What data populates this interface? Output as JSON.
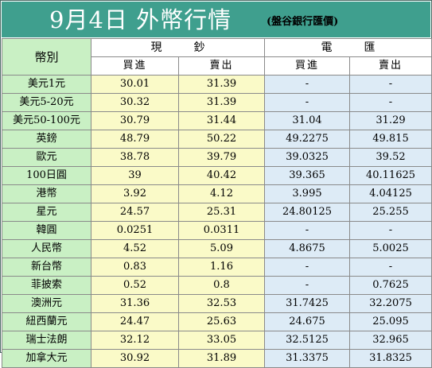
{
  "title": {
    "main": "9月4日 外幣行情",
    "source": "(盤谷銀行匯價)"
  },
  "header": {
    "currency_label": "幣別",
    "cash_label": "現鈔",
    "tt_label": "電匯",
    "buy_label": "買進",
    "sell_label": "賣出"
  },
  "rows": [
    {
      "name": "美元1元",
      "cash_buy": "30.01",
      "cash_sell": "31.39",
      "tt_buy": "-",
      "tt_sell": "-"
    },
    {
      "name": "美元5-20元",
      "cash_buy": "30.32",
      "cash_sell": "31.39",
      "tt_buy": "-",
      "tt_sell": "-"
    },
    {
      "name": "美元50-100元",
      "cash_buy": "30.79",
      "cash_sell": "31.44",
      "tt_buy": "31.04",
      "tt_sell": "31.29"
    },
    {
      "name": "英鎊",
      "cash_buy": "48.79",
      "cash_sell": "50.22",
      "tt_buy": "49.2275",
      "tt_sell": "49.815"
    },
    {
      "name": "歐元",
      "cash_buy": "38.78",
      "cash_sell": "39.79",
      "tt_buy": "39.0325",
      "tt_sell": "39.52"
    },
    {
      "name": "100日圓",
      "cash_buy": "39",
      "cash_sell": "40.42",
      "tt_buy": "39.365",
      "tt_sell": "40.11625"
    },
    {
      "name": "港幣",
      "cash_buy": "3.92",
      "cash_sell": "4.12",
      "tt_buy": "3.995",
      "tt_sell": "4.04125"
    },
    {
      "name": "星元",
      "cash_buy": "24.57",
      "cash_sell": "25.31",
      "tt_buy": "24.80125",
      "tt_sell": "25.255"
    },
    {
      "name": "韓圓",
      "cash_buy": "0.0251",
      "cash_sell": "0.0311",
      "tt_buy": "-",
      "tt_sell": "-"
    },
    {
      "name": "人民幣",
      "cash_buy": "4.52",
      "cash_sell": "5.09",
      "tt_buy": "4.8675",
      "tt_sell": "5.0025"
    },
    {
      "name": "新台幣",
      "cash_buy": "0.83",
      "cash_sell": "1.16",
      "tt_buy": "-",
      "tt_sell": "-"
    },
    {
      "name": "菲披索",
      "cash_buy": "0.52",
      "cash_sell": "0.8",
      "tt_buy": "-",
      "tt_sell": "0.7625"
    },
    {
      "name": "澳洲元",
      "cash_buy": "31.36",
      "cash_sell": "32.53",
      "tt_buy": "31.7425",
      "tt_sell": "32.2075"
    },
    {
      "name": "紐西蘭元",
      "cash_buy": "24.47",
      "cash_sell": "25.63",
      "tt_buy": "24.675",
      "tt_sell": "25.095"
    },
    {
      "name": "瑞士法朗",
      "cash_buy": "32.12",
      "cash_sell": "33.05",
      "tt_buy": "32.5125",
      "tt_sell": "32.965"
    },
    {
      "name": "加拿大元",
      "cash_buy": "30.92",
      "cash_sell": "31.89",
      "tt_buy": "31.3375",
      "tt_sell": "31.8325"
    }
  ],
  "colors": {
    "title_bar": "#3f9f8e",
    "currency_column": "#c9f0c4",
    "cash_columns": "#fafac8",
    "tt_columns": "#ddebf6"
  }
}
